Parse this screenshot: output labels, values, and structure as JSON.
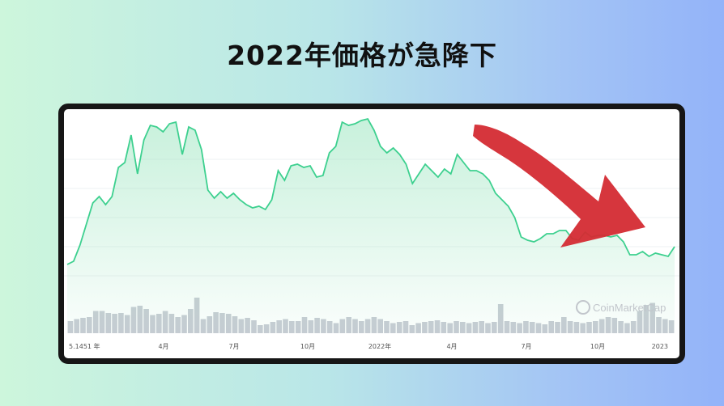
{
  "title": "2022年価格が急降下",
  "chart_data": {
    "type": "area",
    "title": "2022年価格が急降下",
    "xlabel": "",
    "ylabel": "",
    "x_ticks": [
      "5.1451 年",
      "4月",
      "7月",
      "10月",
      "2022年",
      "4月",
      "7月",
      "10月",
      "2023"
    ],
    "price_series": [
      0.1,
      0.12,
      0.22,
      0.35,
      0.48,
      0.52,
      0.47,
      0.52,
      0.7,
      0.73,
      0.9,
      0.66,
      0.87,
      0.96,
      0.95,
      0.92,
      0.97,
      0.98,
      0.78,
      0.95,
      0.93,
      0.81,
      0.56,
      0.51,
      0.55,
      0.51,
      0.54,
      0.5,
      0.47,
      0.45,
      0.46,
      0.44,
      0.5,
      0.68,
      0.62,
      0.71,
      0.72,
      0.7,
      0.71,
      0.64,
      0.65,
      0.79,
      0.83,
      0.98,
      0.96,
      0.97,
      0.99,
      1.0,
      0.93,
      0.83,
      0.79,
      0.82,
      0.78,
      0.72,
      0.6,
      0.66,
      0.72,
      0.68,
      0.64,
      0.69,
      0.66,
      0.78,
      0.73,
      0.68,
      0.68,
      0.66,
      0.62,
      0.54,
      0.5,
      0.46,
      0.39,
      0.27,
      0.25,
      0.24,
      0.26,
      0.29,
      0.29,
      0.31,
      0.31,
      0.26,
      0.25,
      0.3,
      0.27,
      0.28,
      0.28,
      0.27,
      0.28,
      0.24,
      0.16,
      0.16,
      0.18,
      0.15,
      0.17,
      0.16,
      0.15,
      0.21
    ],
    "volume_series": [
      0.3,
      0.35,
      0.38,
      0.4,
      0.55,
      0.55,
      0.5,
      0.48,
      0.5,
      0.45,
      0.65,
      0.68,
      0.6,
      0.45,
      0.48,
      0.55,
      0.48,
      0.4,
      0.45,
      0.6,
      0.88,
      0.35,
      0.42,
      0.52,
      0.5,
      0.48,
      0.42,
      0.35,
      0.38,
      0.32,
      0.2,
      0.22,
      0.28,
      0.32,
      0.35,
      0.3,
      0.3,
      0.4,
      0.32,
      0.38,
      0.35,
      0.3,
      0.25,
      0.35,
      0.4,
      0.35,
      0.3,
      0.35,
      0.4,
      0.35,
      0.3,
      0.25,
      0.28,
      0.3,
      0.2,
      0.25,
      0.28,
      0.3,
      0.32,
      0.28,
      0.25,
      0.3,
      0.28,
      0.25,
      0.28,
      0.3,
      0.25,
      0.28,
      0.72,
      0.3,
      0.28,
      0.25,
      0.3,
      0.28,
      0.25,
      0.22,
      0.3,
      0.28,
      0.4,
      0.3,
      0.28,
      0.25,
      0.28,
      0.3,
      0.35,
      0.4,
      0.38,
      0.3,
      0.25,
      0.3,
      0.55,
      0.7,
      0.75,
      0.4,
      0.35,
      0.32
    ],
    "watermark": "CoinMarketCap",
    "line_color": "#3dd08f",
    "volume_color": "#c7cbd3",
    "arrow_color": "#d42b33",
    "annotation": "red arrow pointing downward to the right"
  }
}
